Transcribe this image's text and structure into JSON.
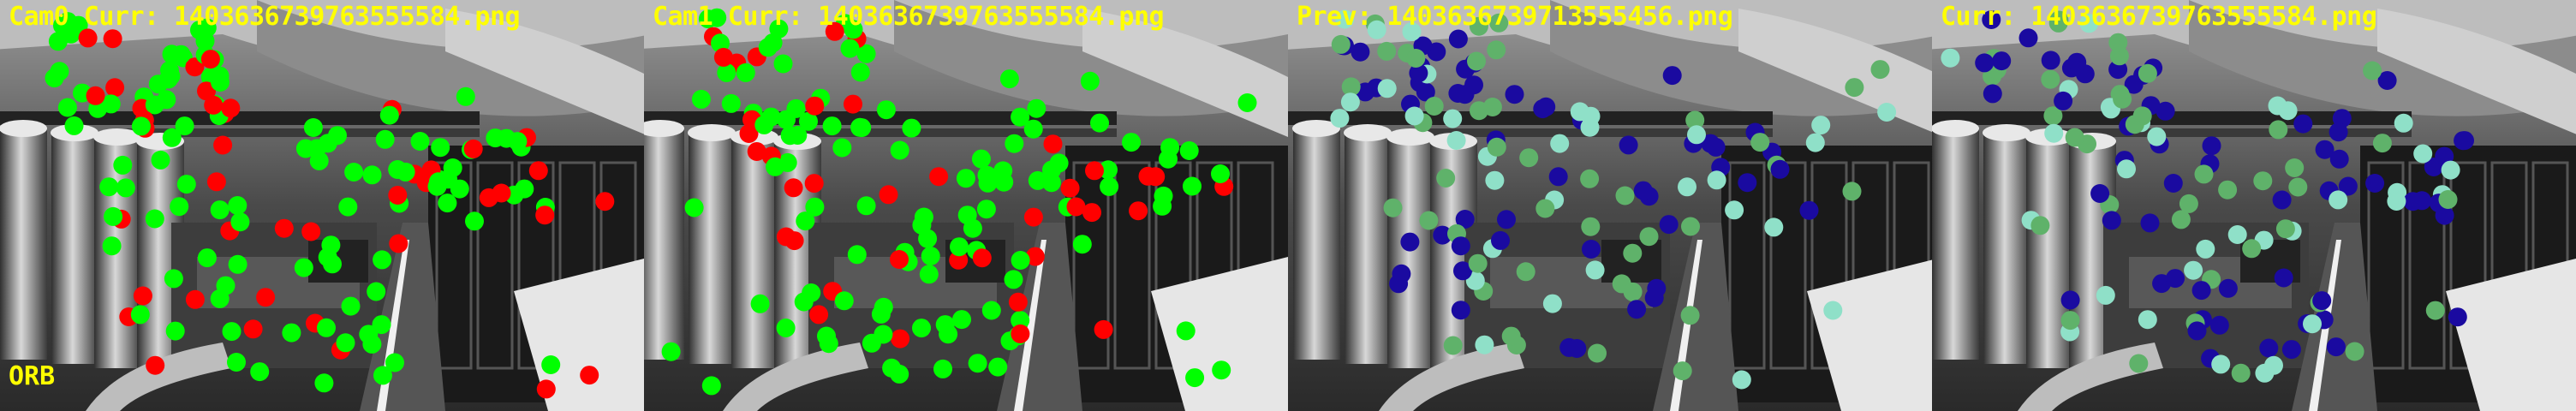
{
  "panels": [
    {
      "title": "Cam0 Curr: 1403636739763555584.png",
      "scheme": "match"
    },
    {
      "title": "Cam1 Curr: 1403636739763555584.png",
      "scheme": "match"
    },
    {
      "title": "Prev: 1403636739713555456.png",
      "scheme": "track"
    },
    {
      "title": "Curr: 1403636739763555584.png",
      "scheme": "track"
    }
  ],
  "method_label": "ORB",
  "colors": {
    "label_text": "#ffff00",
    "match_inlier": "#00ff00",
    "match_outlier": "#ff0000",
    "track_dark": "#1a0aa0",
    "track_mid": "#5fb26a",
    "track_light": "#8fe0c8"
  }
}
